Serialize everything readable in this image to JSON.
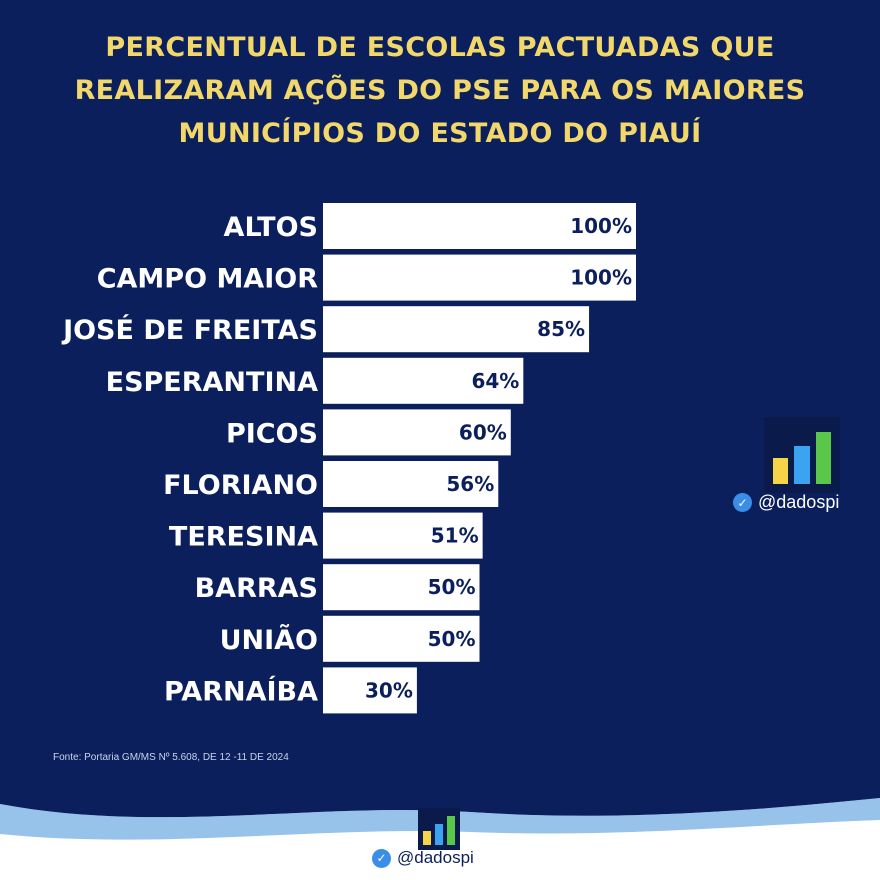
{
  "title_lines": [
    "PERCENTUAL DE ESCOLAS PACTUADAS QUE",
    "REALIZARAM AÇÕES DO PSE PARA OS MAIORES",
    "MUNICÍPIOS DO ESTADO DO PIAUÍ"
  ],
  "source": "Fonte: Portaria GM/MS Nº 5.608, DE 12 -11 DE 2024",
  "brand": {
    "handle": "@dadospi",
    "logo_colors": [
      "#f5d447",
      "#3ba3f0",
      "#58c74a"
    ],
    "logo_bar_levels": [
      0.45,
      0.65,
      0.9
    ]
  },
  "colors": {
    "background": "#0b1f5c",
    "bar": "#ffffff",
    "title": "#f2d76b",
    "value_text": "#0b1f5c"
  },
  "chart_data": {
    "type": "bar",
    "orientation": "horizontal",
    "title": "PERCENTUAL DE ESCOLAS PACTUADAS QUE REALIZARAM AÇÕES DO PSE PARA OS MAIORES MUNICÍPIOS DO ESTADO DO PIAUÍ",
    "categories": [
      "ALTOS",
      "CAMPO MAIOR",
      "JOSÉ DE FREITAS",
      "ESPERANTINA",
      "PICOS",
      "FLORIANO",
      "TERESINA",
      "BARRAS",
      "UNIÃO",
      "PARNAÍBA"
    ],
    "values": [
      100,
      100,
      85,
      64,
      60,
      56,
      51,
      50,
      50,
      30
    ],
    "value_labels": [
      "100%",
      "100%",
      "85%",
      "64%",
      "60%",
      "56%",
      "51%",
      "50%",
      "50%",
      "30%"
    ],
    "xlim": [
      0,
      100
    ],
    "grid": false,
    "xlabel": "",
    "ylabel": ""
  }
}
